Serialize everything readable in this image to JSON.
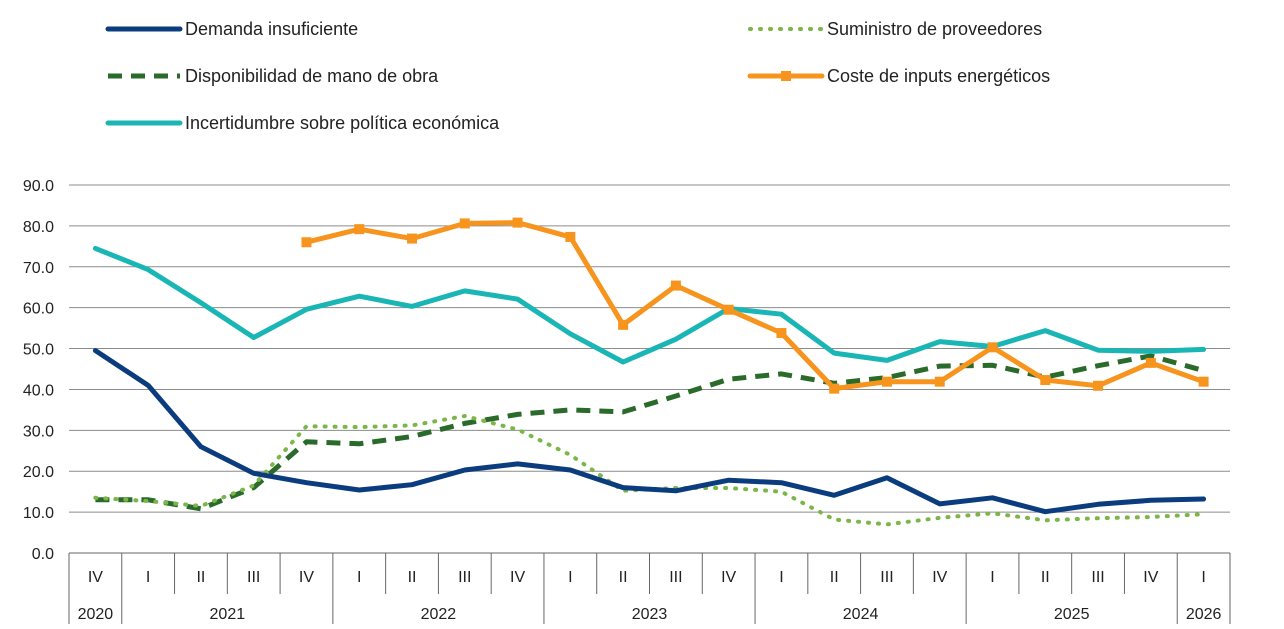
{
  "chart_data": {
    "type": "line",
    "title": "",
    "xlabel": "",
    "ylabel": "",
    "ylim": [
      0,
      90
    ],
    "yticks": [
      "0.0",
      "10.0",
      "20.0",
      "30.0",
      "40.0",
      "50.0",
      "60.0",
      "70.0",
      "80.0",
      "90.0"
    ],
    "grid": true,
    "legend_position": "top",
    "categories": [
      "IV",
      "I",
      "II",
      "III",
      "IV",
      "I",
      "II",
      "III",
      "IV",
      "I",
      "II",
      "III",
      "IV",
      "I",
      "II",
      "III",
      "IV",
      "I",
      "II",
      "III",
      "IV",
      "I"
    ],
    "years": [
      {
        "label": "2020",
        "start": 0,
        "end": 0
      },
      {
        "label": "2021",
        "start": 1,
        "end": 4
      },
      {
        "label": "2022",
        "start": 5,
        "end": 8
      },
      {
        "label": "2023",
        "start": 9,
        "end": 12
      },
      {
        "label": "2024",
        "start": 13,
        "end": 16
      },
      {
        "label": "2025",
        "start": 17,
        "end": 20
      },
      {
        "label": "2026",
        "start": 21,
        "end": 21
      }
    ],
    "series": [
      {
        "name": "Demanda insuficiente",
        "color": "#0b3d7e",
        "style": "solid",
        "values": [
          49.5,
          41,
          26,
          19.5,
          17.2,
          15.4,
          16.7,
          20.3,
          21.8,
          20.3,
          16,
          15.2,
          17.8,
          17.2,
          14.1,
          18.4,
          12,
          13.5,
          10.1,
          11.9,
          12.9,
          13.2
        ]
      },
      {
        "name": "Suministro de proveedores",
        "color": "#7ab648",
        "style": "dotted",
        "values": [
          13.5,
          12.7,
          11.5,
          16.5,
          31,
          30.8,
          31.2,
          33.5,
          30.2,
          24,
          15.2,
          15.9,
          15.9,
          15,
          8.2,
          7,
          8.6,
          9.7,
          8,
          8.5,
          8.8,
          9.5
        ]
      },
      {
        "name": "Disponibilidad de mano de obra",
        "color": "#2a6a2a",
        "style": "dashed",
        "values": [
          13,
          13,
          10.8,
          16,
          27.2,
          26.7,
          28.5,
          31.7,
          33.9,
          35,
          34.5,
          38.4,
          42.5,
          43.8,
          41.5,
          42.9,
          45.7,
          45.9,
          43,
          45.8,
          48.2,
          44.6
        ]
      },
      {
        "name": "Coste de inputs energéticos",
        "color": "#f7941d",
        "style": "solid-marker",
        "values": [
          null,
          null,
          null,
          null,
          76,
          79.2,
          76.9,
          80.6,
          80.8,
          77.3,
          55.8,
          65.4,
          59.5,
          53.8,
          40.2,
          41.9,
          41.9,
          50.3,
          42.3,
          40.9,
          46.5,
          41.9
        ]
      },
      {
        "name": "Incertidumbre sobre política económica",
        "color": "#1ab5b5",
        "style": "solid",
        "values": [
          74.5,
          69.3,
          61.2,
          52.7,
          59.6,
          62.8,
          60.3,
          64.1,
          62.1,
          53.6,
          46.7,
          52.3,
          59.8,
          58.4,
          48.9,
          47.1,
          51.7,
          50.5,
          54.4,
          49.6,
          49.3,
          49.8
        ]
      }
    ]
  }
}
